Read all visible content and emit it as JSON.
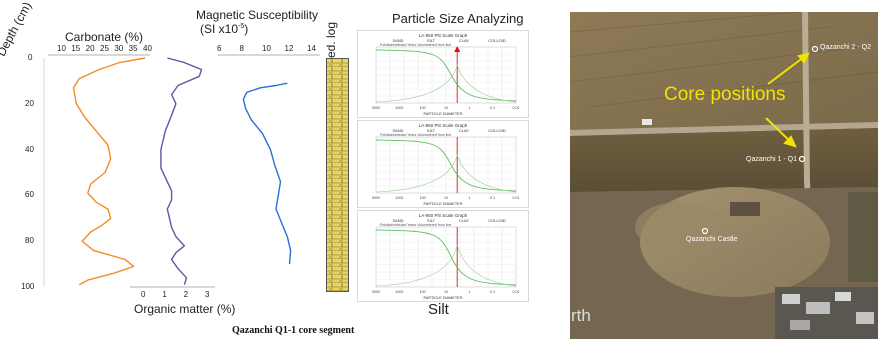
{
  "depth_axis": {
    "label": "Depth (cm)",
    "ticks": [
      "0",
      "20",
      "40",
      "60",
      "80",
      "100"
    ]
  },
  "carbonate": {
    "title": "Carbonate (%)",
    "ticks": [
      "10",
      "15",
      "20",
      "25",
      "30",
      "35",
      "40"
    ],
    "color": "#f28c28"
  },
  "organic_matter": {
    "title": "Organic matter (%)",
    "ticks": [
      "0",
      "1",
      "2",
      "3"
    ],
    "color": "#5a5aa8"
  },
  "magnetic_susceptibility": {
    "title_line1": "Magnetic Susceptibility",
    "title_line2": "(SI x10",
    "title_exp": "-5",
    "title_close": ")",
    "ticks": [
      "6",
      "8",
      "10",
      "12",
      "14"
    ],
    "color": "#2a6fd6"
  },
  "sed_log": {
    "label": "Sed. log",
    "color": "#e8d566"
  },
  "psa": {
    "title": "Particle Size Analyzing",
    "footer": "Silt",
    "panel_labels": {
      "graph_title": "LA-950 Phi Scale Graph",
      "series_label": "Polidisdistributed Years Volumetered from line",
      "classes": [
        "SAND",
        "SILT",
        "CLAY",
        "COLLOID"
      ],
      "x_axis_title": "PARTICLE DIAMETER",
      "x_ticks": [
        "5000",
        "1000",
        "100",
        "10",
        "1",
        "0.1",
        "0.01"
      ]
    }
  },
  "caption": "Qazanchi  Q1-1 core segment",
  "map": {
    "annotation": "Core positions",
    "q2_label": "Qazanchi 2 - Q2",
    "q1_label": "Qazanchi 1 - Q1",
    "site_label": "Qazanchi Castle",
    "watermark": "rth"
  },
  "chart_data": [
    {
      "type": "line",
      "title": "Carbonate (%)",
      "xlabel": "Carbonate (%)",
      "ylabel": "Depth (cm)",
      "xlim": [
        10,
        40
      ],
      "ylim": [
        100,
        0
      ],
      "series": [
        {
          "name": "Carbonate (%)",
          "x": [
            39,
            30,
            23,
            16,
            14,
            15,
            18,
            22,
            26,
            27,
            25,
            20,
            19,
            22,
            26,
            27,
            24,
            20,
            17,
            21,
            32,
            35,
            28,
            19,
            16
          ],
          "y": [
            0,
            2,
            5,
            9,
            13,
            20,
            26,
            32,
            38,
            44,
            50,
            55,
            59,
            63,
            66,
            70,
            73,
            76,
            80,
            84,
            88,
            91,
            94,
            97,
            99
          ]
        }
      ]
    },
    {
      "type": "line",
      "title": "Organic matter (%)",
      "xlabel": "Organic matter (%)",
      "ylabel": "Depth (cm)",
      "xlim": [
        0,
        3
      ],
      "ylim": [
        100,
        0
      ],
      "series": [
        {
          "name": "Organic matter (%)",
          "x": [
            1.0,
            1.8,
            2.6,
            2.5,
            1.5,
            1.2,
            1.4,
            1.2,
            0.9,
            0.7,
            0.7,
            1.0,
            1.2,
            1.2,
            1.0,
            1.1,
            1.2,
            1.4,
            1.8,
            1.4,
            1.2,
            1.5,
            1.9,
            1.8
          ],
          "y": [
            0,
            2,
            5,
            8,
            12,
            16,
            20,
            25,
            32,
            40,
            48,
            54,
            58,
            62,
            66,
            70,
            74,
            78,
            82,
            85,
            88,
            92,
            96,
            99
          ]
        }
      ]
    },
    {
      "type": "line",
      "title": "Magnetic Susceptibility (SI x10-5)",
      "xlabel": "Magnetic Susceptibility (SI x10-5)",
      "ylabel": "Depth (cm)",
      "xlim": [
        6,
        14
      ],
      "ylim": [
        100,
        0
      ],
      "series": [
        {
          "name": "Magnetic Susceptibility",
          "x": [
            11.8,
            10.8,
            9.4,
            8.2,
            7.9,
            8.1,
            8.6,
            9.6,
            10.3,
            10.7,
            11.2,
            11.0,
            10.8,
            11.3,
            11.8,
            12.1,
            12.0
          ],
          "y": [
            11,
            12,
            13,
            15,
            18,
            22,
            27,
            33,
            40,
            47,
            54,
            60,
            66,
            72,
            78,
            84,
            90
          ]
        }
      ]
    }
  ]
}
